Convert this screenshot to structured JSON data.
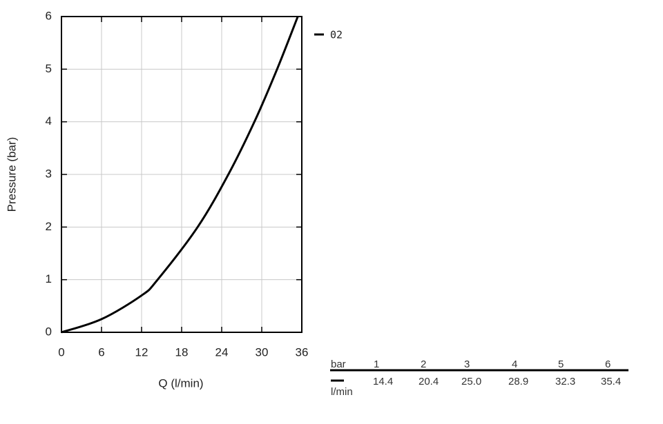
{
  "chart_data": {
    "type": "line",
    "x_label": "Q (l/min)",
    "y_label": "Pressure (bar)",
    "x": [
      0,
      6,
      12,
      14.4,
      20.4,
      25.0,
      28.9,
      32.3,
      35.4
    ],
    "series": [
      {
        "name": "02",
        "color": "#000000",
        "values": [
          0,
          0.25,
          0.7,
          1,
          2,
          3,
          4,
          5,
          6
        ]
      }
    ],
    "xlim": [
      0,
      36
    ],
    "xticks": [
      0,
      6,
      12,
      18,
      24,
      30,
      36
    ],
    "ylim": [
      0,
      6
    ],
    "yticks": [
      0,
      1,
      2,
      3,
      4,
      5,
      6
    ],
    "grid": true,
    "legend": "right"
  },
  "table": {
    "header": [
      "bar",
      "1",
      "2",
      "3",
      "4",
      "5",
      "6"
    ],
    "rows": [
      [
        "14.4",
        "20.4",
        "25.0",
        "28.9",
        "32.3",
        "35.4"
      ]
    ],
    "row_unit": "l/min"
  }
}
